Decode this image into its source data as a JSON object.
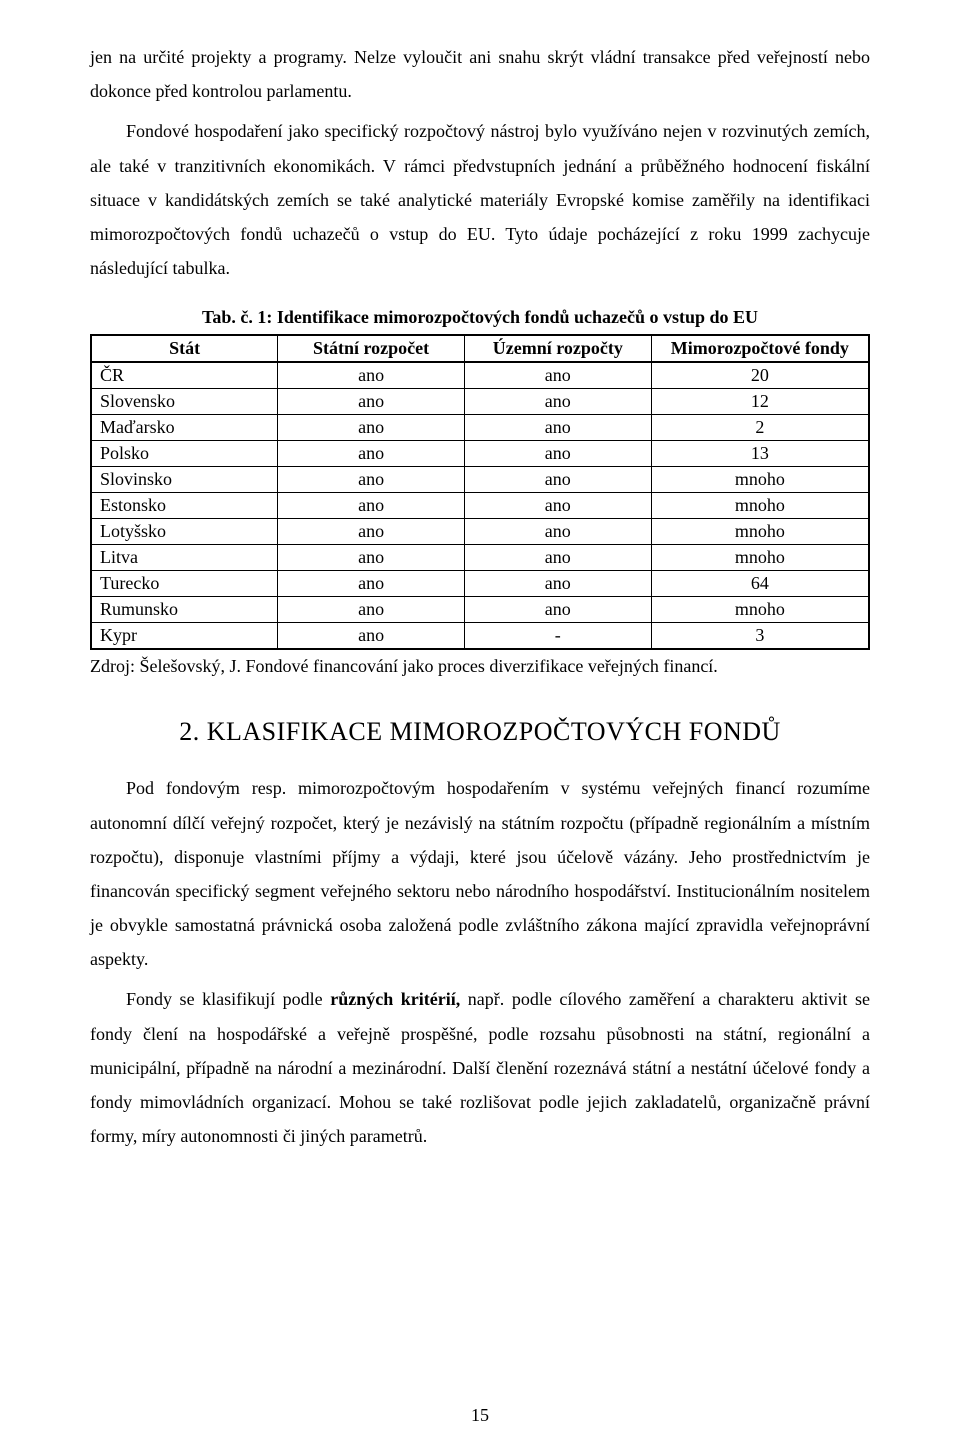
{
  "para1": "jen na určité projekty a programy. Nelze vyloučit ani snahu skrýt vládní transakce před veřejností nebo dokonce před kontrolou parlamentu.",
  "para2": "Fondové hospodaření jako specifický rozpočtový nástroj bylo využíváno nejen v rozvinutých zemích, ale také v tranzitivních ekonomikách. V rámci předvstupních jednání a průběžného hodnocení fiskální situace v kandidátských zemích se také analytické materiály Evropské komise zaměřily na identifikaci mimorozpočtových fondů uchazečů o vstup do EU. Tyto údaje pocházející z roku 1999 zachycuje následující tabulka.",
  "table": {
    "caption": "Tab. č. 1: Identifikace mimorozpočtových fondů uchazečů o vstup do EU",
    "columns": [
      "Stát",
      "Státní rozpočet",
      "Územní rozpočty",
      "Mimorozpočtové fondy"
    ],
    "rows": [
      [
        "ČR",
        "ano",
        "ano",
        "20"
      ],
      [
        "Slovensko",
        "ano",
        "ano",
        "12"
      ],
      [
        "Maďarsko",
        "ano",
        "ano",
        "2"
      ],
      [
        "Polsko",
        "ano",
        "ano",
        "13"
      ],
      [
        "Slovinsko",
        "ano",
        "ano",
        "mnoho"
      ],
      [
        "Estonsko",
        "ano",
        "ano",
        "mnoho"
      ],
      [
        "Lotyšsko",
        "ano",
        "ano",
        "mnoho"
      ],
      [
        "Litva",
        "ano",
        "ano",
        "mnoho"
      ],
      [
        "Turecko",
        "ano",
        "ano",
        "64"
      ],
      [
        "Rumunsko",
        "ano",
        "ano",
        "mnoho"
      ],
      [
        "Kypr",
        "ano",
        "-",
        "3"
      ]
    ]
  },
  "source": "Zdroj: Šelešovský, J. Fondové financování jako proces diverzifikace veřejných financí.",
  "heading2": "2. KLASIFIKACE MIMOROZPOČTOVÝCH FONDŮ",
  "para3": "Pod fondovým resp. mimorozpočtovým hospodařením v systému veřejných financí rozumíme autonomní dílčí veřejný rozpočet, který je nezávislý na státním rozpočtu (případně regionálním a místním rozpočtu), disponuje vlastními příjmy a výdaji, které jsou účelově vázány. Jeho prostřednictvím je financován specifický segment veřejného sektoru nebo národního hospodářství. Institucionálním nositelem je obvykle samostatná právnická osoba založená podle zvláštního zákona mající zpravidla veřejnoprávní aspekty.",
  "para4_pre": "Fondy se klasifikují podle ",
  "para4_bold": "různých kritérií,",
  "para4_post": " např. podle cílového zaměření a charakteru aktivit se fondy člení na hospodářské a veřejně prospěšné, podle rozsahu působnosti na státní, regionální a municipální, případně na národní a mezinárodní. Další členění rozeznává státní a nestátní účelové fondy a fondy mimovládních organizací. Mohou se také rozlišovat podle jejich zakladatelů, organizačně právní formy, míry autonomnosti či jiných parametrů.",
  "page_number": "15"
}
